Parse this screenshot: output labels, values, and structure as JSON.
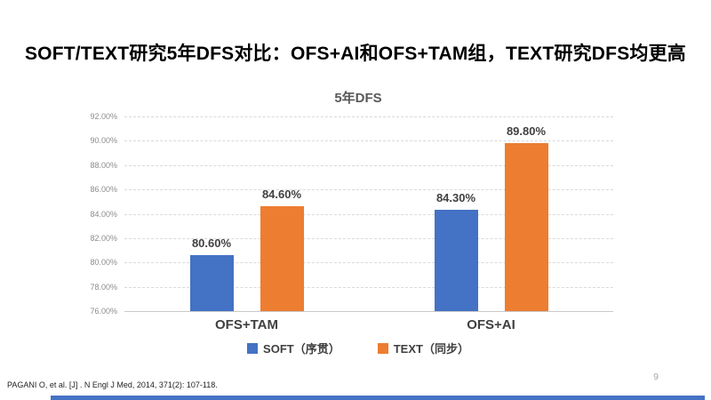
{
  "slide": {
    "title": "SOFT/TEXT研究5年DFS对比：OFS+AI和OFS+TAM组，TEXT研究DFS均更高",
    "citation": "PAGANI O, et al. [J] . N Engl J Med, 2014, 371(2): 107-118.",
    "page_number": "9"
  },
  "chart_data": {
    "type": "bar",
    "title": "5年DFS",
    "categories": [
      "OFS+TAM",
      "OFS+AI"
    ],
    "category_slugs": [
      "ofs-tam",
      "ofs-ai"
    ],
    "series": [
      {
        "name": "SOFT（序贯）",
        "slug": "soft",
        "color": "#4472C4",
        "values": [
          80.6,
          84.3
        ],
        "data_labels": [
          "80.60%",
          "84.30%"
        ]
      },
      {
        "name": "TEXT（同步）",
        "slug": "text",
        "color": "#ED7D31",
        "values": [
          84.6,
          89.8
        ],
        "data_labels": [
          "84.60%",
          "89.80%"
        ]
      }
    ],
    "ylim": [
      76,
      92
    ],
    "ytick_values": [
      76,
      78,
      80,
      82,
      84,
      86,
      88,
      90,
      92
    ],
    "ytick_labels": [
      "76.00%",
      "78.00%",
      "80.00%",
      "82.00%",
      "84.00%",
      "86.00%",
      "88.00%",
      "90.00%",
      "92.00%"
    ],
    "grid": true,
    "legend_position": "bottom"
  },
  "colors": {
    "series_blue": "#4472C4",
    "series_orange": "#ED7D31",
    "gridline": "#D9D9D9",
    "axis_text": "#8C8C8C",
    "label_text": "#404040",
    "chart_title": "#595959",
    "bottom_accent": "#4472C4"
  }
}
